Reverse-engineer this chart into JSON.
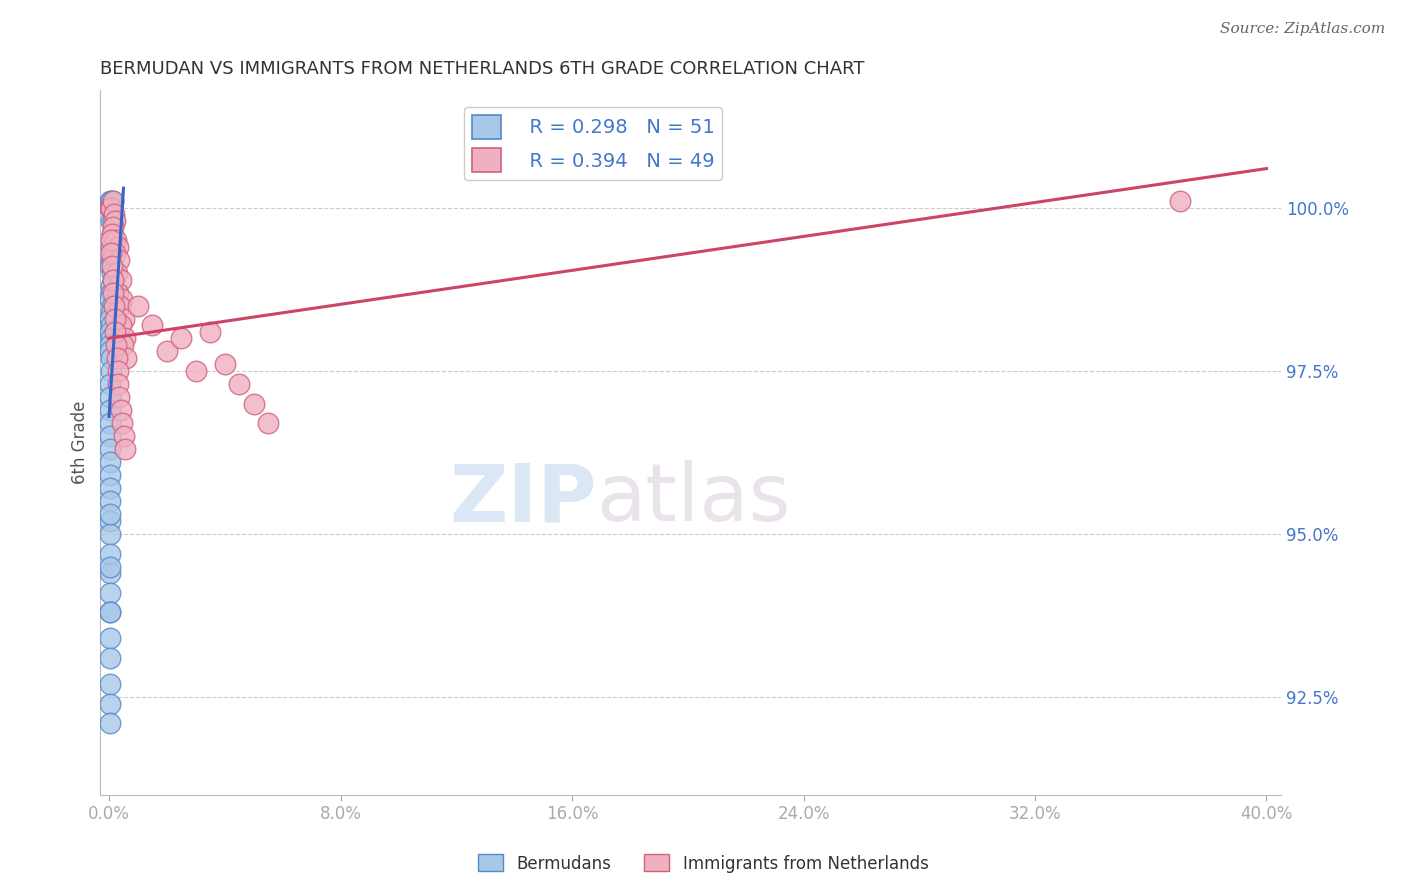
{
  "title": "BERMUDAN VS IMMIGRANTS FROM NETHERLANDS 6TH GRADE CORRELATION CHART",
  "source": "Source: ZipAtlas.com",
  "ylabel": "6th Grade",
  "legend_blue_r": "R = 0.298",
  "legend_blue_n": "N = 51",
  "legend_pink_r": "R = 0.394",
  "legend_pink_n": "N = 49",
  "legend_label_blue": "Bermudans",
  "legend_label_pink": "Immigrants from Netherlands",
  "xmin": -0.3,
  "xmax": 40.5,
  "ymin": 91.0,
  "ymax": 101.8,
  "yticks": [
    92.5,
    95.0,
    97.5,
    100.0
  ],
  "xtick_positions": [
    0.0,
    8.0,
    16.0,
    24.0,
    32.0,
    40.0
  ],
  "xtick_labels": [
    "0.0%",
    "8.0%",
    "16.0%",
    "24.0%",
    "32.0%",
    "40.0%"
  ],
  "ytick_labels": [
    "92.5%",
    "95.0%",
    "97.5%",
    "100.0%"
  ],
  "blue_color": "#a8c8e8",
  "blue_edge_color": "#5588cc",
  "pink_color": "#f0b0c0",
  "pink_edge_color": "#d06080",
  "blue_line_color": "#3366cc",
  "pink_line_color": "#cc4466",
  "blue_scatter_x": [
    0.05,
    0.08,
    0.12,
    0.05,
    0.1,
    0.07,
    0.15,
    0.1,
    0.18,
    0.08,
    0.06,
    0.04,
    0.09,
    0.12,
    0.06,
    0.08,
    0.04,
    0.1,
    0.07,
    0.05,
    0.06,
    0.03,
    0.08,
    0.05,
    0.04,
    0.07,
    0.06,
    0.05,
    0.03,
    0.04,
    0.02,
    0.03,
    0.04,
    0.03,
    0.02,
    0.04,
    0.03,
    0.02,
    0.03,
    0.02,
    0.02,
    0.03,
    0.02,
    0.02,
    0.03,
    0.02,
    0.03,
    0.02,
    0.02,
    0.03,
    0.02
  ],
  "blue_scatter_y": [
    100.1,
    100.1,
    100.1,
    100.0,
    100.0,
    99.8,
    99.8,
    99.6,
    99.5,
    99.4,
    99.2,
    99.1,
    99.0,
    98.9,
    98.8,
    98.7,
    98.6,
    98.5,
    98.4,
    98.3,
    98.2,
    98.1,
    98.0,
    97.9,
    97.8,
    97.7,
    97.5,
    97.3,
    97.1,
    96.9,
    96.7,
    96.5,
    96.3,
    96.1,
    95.9,
    95.7,
    95.5,
    95.2,
    95.0,
    94.7,
    94.4,
    94.1,
    93.8,
    93.4,
    93.1,
    92.7,
    92.4,
    92.1,
    93.8,
    94.5,
    95.3
  ],
  "pink_scatter_x": [
    0.05,
    0.08,
    0.12,
    0.18,
    0.22,
    0.15,
    0.1,
    0.25,
    0.3,
    0.2,
    0.35,
    0.28,
    0.4,
    0.32,
    0.45,
    0.38,
    0.5,
    0.42,
    0.55,
    0.48,
    0.6,
    1.0,
    1.5,
    2.0,
    2.5,
    3.0,
    3.5,
    4.0,
    4.5,
    5.0,
    5.5,
    0.08,
    0.06,
    0.1,
    0.12,
    0.15,
    0.18,
    0.2,
    0.22,
    0.25,
    0.28,
    0.3,
    0.32,
    0.35,
    0.4,
    0.45,
    0.5,
    0.55,
    37.0
  ],
  "pink_scatter_y": [
    100.0,
    100.0,
    100.1,
    99.9,
    99.8,
    99.7,
    99.6,
    99.5,
    99.4,
    99.3,
    99.2,
    99.0,
    98.9,
    98.7,
    98.6,
    98.5,
    98.3,
    98.2,
    98.0,
    97.9,
    97.7,
    98.5,
    98.2,
    97.8,
    98.0,
    97.5,
    98.1,
    97.6,
    97.3,
    97.0,
    96.7,
    99.5,
    99.3,
    99.1,
    98.9,
    98.7,
    98.5,
    98.3,
    98.1,
    97.9,
    97.7,
    97.5,
    97.3,
    97.1,
    96.9,
    96.7,
    96.5,
    96.3,
    100.1
  ],
  "blue_line_x": [
    0.0,
    0.5
  ],
  "blue_line_y": [
    96.8,
    100.3
  ],
  "pink_line_x": [
    0.0,
    40.0
  ],
  "pink_line_y": [
    98.0,
    100.6
  ],
  "watermark_zip": "ZIP",
  "watermark_atlas": "atlas",
  "background_color": "#ffffff",
  "grid_color": "#cccccc",
  "tick_color": "#4477cc",
  "title_color": "#333333"
}
